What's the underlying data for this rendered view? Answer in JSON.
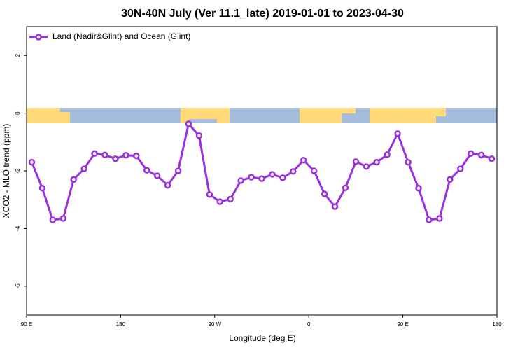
{
  "chart_data": {
    "type": "line",
    "title": "30N-40N July (Ver 11.1_late)   2019-01-01 to 2023-04-30",
    "xlabel": "Longitude (deg E)",
    "ylabel": "XCO2 - MLO trend (ppm)",
    "x": [
      95,
      105,
      115,
      125,
      135,
      145,
      155,
      165,
      175,
      185,
      195,
      205,
      215,
      225,
      235,
      245,
      255,
      265,
      275,
      285,
      295,
      305,
      315,
      325,
      335,
      345,
      355,
      365,
      375,
      385,
      395,
      405,
      415,
      425,
      435,
      445,
      455,
      465,
      475,
      485,
      495,
      505,
      515,
      525,
      535
    ],
    "series": [
      {
        "name": "Land (Nadir&Glint) and Ocean (Glint)",
        "color": "#9b30e0",
        "values": [
          -1.7,
          -2.6,
          -3.7,
          -3.65,
          -2.3,
          -1.93,
          -1.4,
          -1.45,
          -1.58,
          -1.46,
          -1.48,
          -1.98,
          -2.17,
          -2.5,
          -2.0,
          -0.37,
          -0.78,
          -2.82,
          -3.07,
          -2.98,
          -2.34,
          -2.22,
          -2.27,
          -2.12,
          -2.24,
          -2.02,
          -1.63,
          -2.0,
          -2.8,
          -3.24,
          -2.59,
          -1.68,
          -1.85,
          -1.7,
          -1.44,
          -0.71,
          -1.7,
          -2.6,
          -3.7,
          -3.65,
          -2.3,
          -1.93,
          -1.4,
          -1.45,
          -1.58
        ]
      }
    ],
    "xlim": [
      90,
      540
    ],
    "xticks": [
      {
        "value": 90,
        "label": "90 E"
      },
      180,
      {
        "value": 270,
        "label": "90 W"
      },
      {
        "value": 360,
        "label": "0"
      },
      {
        "value": 450,
        "label": "90 E"
      },
      {
        "value": 540,
        "label": "180"
      }
    ],
    "ylim": [
      -7,
      3
    ],
    "yticks": [
      -6,
      -4,
      -2,
      0,
      2
    ],
    "legend": "top-left"
  }
}
